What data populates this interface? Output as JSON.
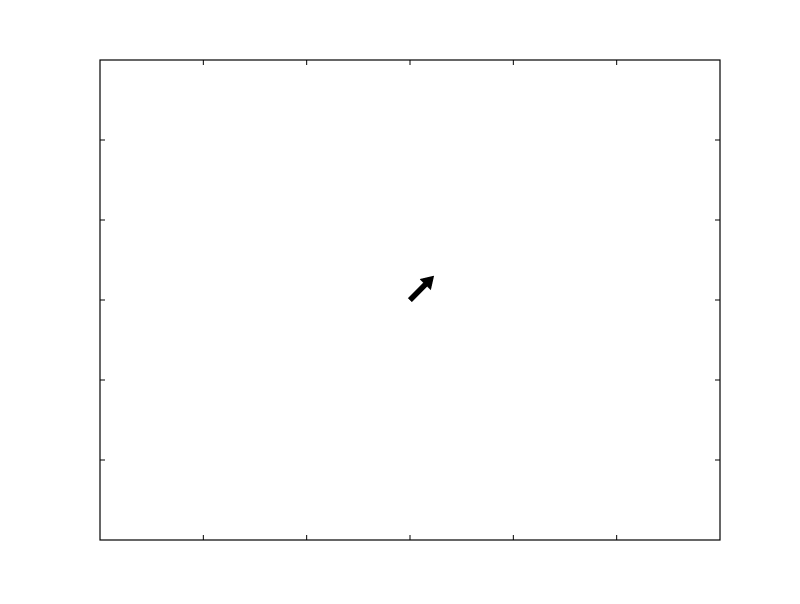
{
  "chart_data": {
    "type": "quiver",
    "title": "",
    "xlabel": "",
    "ylabel": "",
    "xlim": [
      0,
      6
    ],
    "ylim": [
      0,
      6
    ],
    "xticks": [
      1,
      2,
      3,
      4,
      5
    ],
    "yticks": [
      1,
      2,
      3,
      4,
      5
    ],
    "xtick_labels": [],
    "ytick_labels": [],
    "grid": false,
    "legend": "none",
    "series": [
      {
        "type": "arrow",
        "x": 3.0,
        "y": 3.0,
        "u": 0.23,
        "v": 0.3,
        "color": "#000000"
      }
    ]
  }
}
